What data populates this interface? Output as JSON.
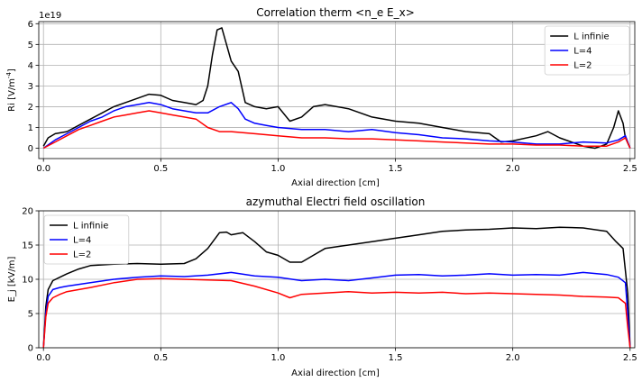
{
  "chart_data": [
    {
      "type": "line",
      "title": "Correlation therm <n_e E_x>",
      "xlabel": "Axial direction [cm]",
      "ylabel": "Ri [V/m",
      "ylabel_sup": "-4",
      "ylabel_end": "]",
      "offset_text": "1e19",
      "xlim": [
        -0.02,
        2.52
      ],
      "ylim": [
        -0.5,
        6.1
      ],
      "xticks": [
        0.0,
        0.5,
        1.0,
        1.5,
        2.0,
        2.5
      ],
      "xtick_labels": [
        "0.0",
        "0.5",
        "1.0",
        "1.5",
        "2.0",
        "2.5"
      ],
      "yticks": [
        0,
        1,
        2,
        3,
        4,
        5,
        6
      ],
      "ytick_labels": [
        "0",
        "1",
        "2",
        "3",
        "4",
        "5",
        "6"
      ],
      "grid": true,
      "legend_position": "top-right",
      "series": [
        {
          "name": "L infinie",
          "color": "#000000",
          "x": [
            0.0,
            0.02,
            0.05,
            0.1,
            0.15,
            0.2,
            0.25,
            0.3,
            0.35,
            0.4,
            0.45,
            0.5,
            0.55,
            0.6,
            0.65,
            0.68,
            0.7,
            0.72,
            0.74,
            0.76,
            0.78,
            0.8,
            0.83,
            0.86,
            0.9,
            0.95,
            1.0,
            1.05,
            1.1,
            1.15,
            1.2,
            1.3,
            1.4,
            1.5,
            1.6,
            1.7,
            1.8,
            1.9,
            1.95,
            2.0,
            2.1,
            2.15,
            2.2,
            2.3,
            2.35,
            2.4,
            2.43,
            2.45,
            2.47,
            2.48,
            2.5
          ],
          "y": [
            0.1,
            0.5,
            0.7,
            0.8,
            1.1,
            1.4,
            1.7,
            2.0,
            2.2,
            2.4,
            2.6,
            2.55,
            2.3,
            2.2,
            2.1,
            2.3,
            3.0,
            4.5,
            5.7,
            5.8,
            5.0,
            4.2,
            3.7,
            2.2,
            2.0,
            1.9,
            2.0,
            1.3,
            1.5,
            2.0,
            2.1,
            1.9,
            1.5,
            1.3,
            1.2,
            1.0,
            0.8,
            0.7,
            0.3,
            0.35,
            0.6,
            0.8,
            0.5,
            0.1,
            0.0,
            0.2,
            1.0,
            1.8,
            1.2,
            0.5,
            0.0
          ]
        },
        {
          "name": "L=4",
          "color": "#0000ff",
          "x": [
            0.0,
            0.05,
            0.1,
            0.15,
            0.2,
            0.25,
            0.3,
            0.35,
            0.4,
            0.45,
            0.5,
            0.55,
            0.6,
            0.65,
            0.7,
            0.75,
            0.8,
            0.83,
            0.86,
            0.9,
            0.95,
            1.0,
            1.1,
            1.2,
            1.3,
            1.4,
            1.5,
            1.6,
            1.7,
            1.8,
            1.9,
            2.0,
            2.1,
            2.2,
            2.3,
            2.4,
            2.45,
            2.48,
            2.5
          ],
          "y": [
            0.0,
            0.4,
            0.7,
            1.0,
            1.3,
            1.5,
            1.8,
            2.0,
            2.1,
            2.2,
            2.1,
            1.9,
            1.8,
            1.7,
            1.7,
            2.0,
            2.2,
            1.9,
            1.4,
            1.2,
            1.1,
            1.0,
            0.9,
            0.9,
            0.8,
            0.9,
            0.75,
            0.65,
            0.5,
            0.45,
            0.35,
            0.3,
            0.2,
            0.2,
            0.3,
            0.25,
            0.4,
            0.6,
            0.0
          ]
        },
        {
          "name": "L=2",
          "color": "#ff0000",
          "x": [
            0.0,
            0.05,
            0.1,
            0.15,
            0.2,
            0.25,
            0.3,
            0.35,
            0.4,
            0.45,
            0.5,
            0.55,
            0.6,
            0.65,
            0.7,
            0.75,
            0.8,
            0.85,
            0.9,
            1.0,
            1.1,
            1.2,
            1.3,
            1.4,
            1.5,
            1.6,
            1.7,
            1.8,
            1.9,
            2.0,
            2.1,
            2.2,
            2.3,
            2.4,
            2.45,
            2.48,
            2.5
          ],
          "y": [
            0.0,
            0.3,
            0.6,
            0.9,
            1.1,
            1.3,
            1.5,
            1.6,
            1.7,
            1.8,
            1.7,
            1.6,
            1.5,
            1.4,
            1.0,
            0.8,
            0.8,
            0.75,
            0.7,
            0.6,
            0.5,
            0.5,
            0.45,
            0.45,
            0.4,
            0.35,
            0.3,
            0.25,
            0.2,
            0.2,
            0.15,
            0.15,
            0.1,
            0.1,
            0.3,
            0.5,
            0.0
          ]
        }
      ]
    },
    {
      "type": "line",
      "title": "azymuthal Electri field oscillation",
      "xlabel": "Axial direction [cm]",
      "ylabel": "E_j [kV/m]",
      "xlim": [
        -0.02,
        2.52
      ],
      "ylim": [
        0,
        20
      ],
      "xticks": [
        0.0,
        0.5,
        1.0,
        1.5,
        2.0,
        2.5
      ],
      "xtick_labels": [
        "0.0",
        "0.5",
        "1.0",
        "1.5",
        "2.0",
        "2.5"
      ],
      "yticks": [
        0,
        5,
        10,
        15,
        20
      ],
      "ytick_labels": [
        "0",
        "5",
        "10",
        "15",
        "20"
      ],
      "grid": true,
      "legend_position": "top-left",
      "series": [
        {
          "name": "L infinie",
          "color": "#000000",
          "x": [
            0.0,
            0.01,
            0.02,
            0.04,
            0.07,
            0.1,
            0.15,
            0.2,
            0.3,
            0.4,
            0.5,
            0.6,
            0.65,
            0.7,
            0.75,
            0.78,
            0.8,
            0.85,
            0.9,
            0.95,
            1.0,
            1.05,
            1.1,
            1.15,
            1.2,
            1.3,
            1.4,
            1.5,
            1.6,
            1.7,
            1.8,
            1.9,
            2.0,
            2.1,
            2.2,
            2.3,
            2.4,
            2.44,
            2.47,
            2.49,
            2.5
          ],
          "y": [
            0.0,
            6.0,
            8.5,
            9.8,
            10.3,
            10.8,
            11.5,
            12.0,
            12.2,
            12.3,
            12.2,
            12.3,
            13.0,
            14.5,
            16.8,
            16.9,
            16.5,
            16.8,
            15.5,
            14.0,
            13.5,
            12.5,
            12.5,
            13.5,
            14.5,
            15.0,
            15.5,
            16.0,
            16.5,
            17.0,
            17.2,
            17.3,
            17.5,
            17.4,
            17.6,
            17.5,
            17.0,
            15.5,
            14.5,
            8.0,
            0.0
          ]
        },
        {
          "name": "L=4",
          "color": "#0000ff",
          "x": [
            0.0,
            0.01,
            0.02,
            0.04,
            0.07,
            0.1,
            0.2,
            0.3,
            0.4,
            0.5,
            0.6,
            0.7,
            0.8,
            0.9,
            1.0,
            1.1,
            1.2,
            1.3,
            1.4,
            1.5,
            1.6,
            1.7,
            1.8,
            1.9,
            2.0,
            2.1,
            2.2,
            2.3,
            2.4,
            2.45,
            2.48,
            2.49,
            2.5
          ],
          "y": [
            0.0,
            5.0,
            7.5,
            8.5,
            8.8,
            9.0,
            9.5,
            10.0,
            10.3,
            10.5,
            10.4,
            10.6,
            11.0,
            10.5,
            10.3,
            9.8,
            10.0,
            9.8,
            10.2,
            10.6,
            10.7,
            10.5,
            10.6,
            10.8,
            10.6,
            10.7,
            10.6,
            11.0,
            10.7,
            10.3,
            9.5,
            5.0,
            0.0
          ]
        },
        {
          "name": "L=2",
          "color": "#ff0000",
          "x": [
            0.0,
            0.01,
            0.02,
            0.04,
            0.07,
            0.1,
            0.2,
            0.3,
            0.4,
            0.5,
            0.6,
            0.7,
            0.8,
            0.9,
            1.0,
            1.05,
            1.1,
            1.2,
            1.3,
            1.4,
            1.5,
            1.6,
            1.7,
            1.8,
            1.9,
            2.0,
            2.1,
            2.2,
            2.3,
            2.4,
            2.45,
            2.48,
            2.49,
            2.5
          ],
          "y": [
            0.0,
            4.5,
            6.5,
            7.3,
            7.8,
            8.2,
            8.8,
            9.5,
            10.0,
            10.1,
            10.0,
            9.9,
            9.8,
            9.0,
            8.0,
            7.3,
            7.8,
            8.0,
            8.2,
            8.0,
            8.1,
            8.0,
            8.1,
            7.9,
            8.0,
            7.9,
            7.8,
            7.7,
            7.5,
            7.4,
            7.3,
            6.5,
            3.0,
            0.0
          ]
        }
      ]
    }
  ]
}
